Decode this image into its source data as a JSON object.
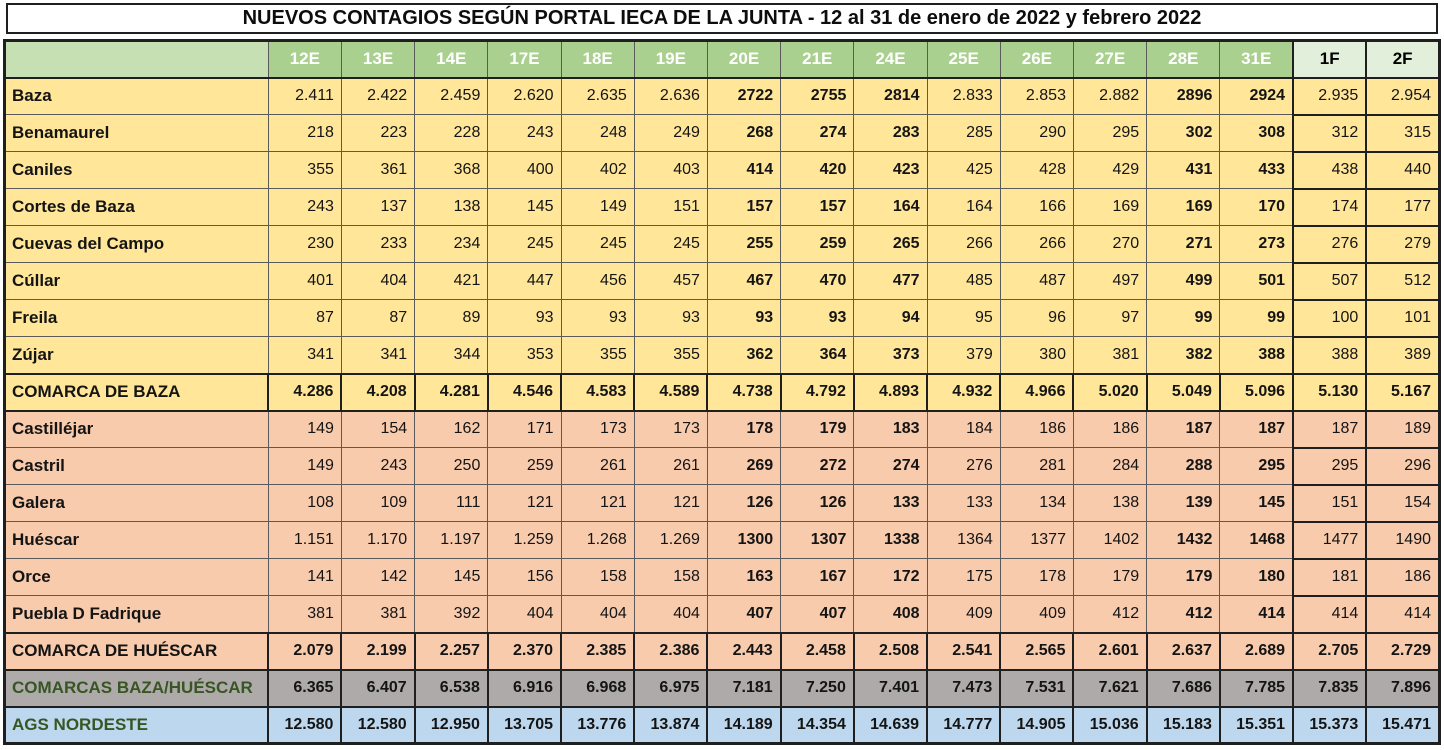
{
  "title": "NUEVOS CONTAGIOS  SEGÚN PORTAL IECA DE LA JUNTA - 12 al 31 de enero de 2022 y febrero 2022",
  "colors": {
    "header_green": "#A9D08E",
    "header_corner_green": "#C6E0B4",
    "header_february": "#E2EFDA",
    "baza_section_yellow": "#FFE699",
    "huescar_section_salmon": "#F8CBAD",
    "comarcas_total_gray": "#AEAAAA",
    "ags_total_blue": "#BDD7EE",
    "total_label_green": "#375623"
  },
  "table": {
    "columns": [
      "12E",
      "13E",
      "14E",
      "17E",
      "18E",
      "19E",
      "20E",
      "21E",
      "24E",
      "25E",
      "26E",
      "27E",
      "28E",
      "31E",
      "1F",
      "2F"
    ],
    "rows": [
      {
        "label": "Baza",
        "section": "yellow",
        "total": false,
        "values": [
          "2.411",
          "2.422",
          "2.459",
          "2.620",
          "2.635",
          "2.636",
          "2722",
          "2755",
          "2814",
          "2.833",
          "2.853",
          "2.882",
          "2896",
          "2924",
          "2.935",
          "2.954"
        ]
      },
      {
        "label": "Benamaurel",
        "section": "yellow",
        "total": false,
        "values": [
          "218",
          "223",
          "228",
          "243",
          "248",
          "249",
          "268",
          "274",
          "283",
          "285",
          "290",
          "295",
          "302",
          "308",
          "312",
          "315"
        ]
      },
      {
        "label": "Caniles",
        "section": "yellow",
        "total": false,
        "values": [
          "355",
          "361",
          "368",
          "400",
          "402",
          "403",
          "414",
          "420",
          "423",
          "425",
          "428",
          "429",
          "431",
          "433",
          "438",
          "440"
        ]
      },
      {
        "label": "Cortes de Baza",
        "section": "yellow",
        "total": false,
        "values": [
          "243",
          "137",
          "138",
          "145",
          "149",
          "151",
          "157",
          "157",
          "164",
          "164",
          "166",
          "169",
          "169",
          "170",
          "174",
          "177"
        ]
      },
      {
        "label": "Cuevas del Campo",
        "section": "yellow",
        "total": false,
        "values": [
          "230",
          "233",
          "234",
          "245",
          "245",
          "245",
          "255",
          "259",
          "265",
          "266",
          "266",
          "270",
          "271",
          "273",
          "276",
          "279"
        ]
      },
      {
        "label": "Cúllar",
        "section": "yellow",
        "total": false,
        "values": [
          "401",
          "404",
          "421",
          "447",
          "456",
          "457",
          "467",
          "470",
          "477",
          "485",
          "487",
          "497",
          "499",
          "501",
          "507",
          "512"
        ]
      },
      {
        "label": "Freila",
        "section": "yellow",
        "total": false,
        "values": [
          "87",
          "87",
          "89",
          "93",
          "93",
          "93",
          "93",
          "93",
          "94",
          "95",
          "96",
          "97",
          "99",
          "99",
          "100",
          "101"
        ]
      },
      {
        "label": "Zújar",
        "section": "yellow",
        "total": false,
        "values": [
          "341",
          "341",
          "344",
          "353",
          "355",
          "355",
          "362",
          "364",
          "373",
          "379",
          "380",
          "381",
          "382",
          "388",
          "388",
          "389"
        ]
      },
      {
        "label": "COMARCA DE BAZA",
        "section": "yellow",
        "total": true,
        "values": [
          "4.286",
          "4.208",
          "4.281",
          "4.546",
          "4.583",
          "4.589",
          "4.738",
          "4.792",
          "4.893",
          "4.932",
          "4.966",
          "5.020",
          "5.049",
          "5.096",
          "5.130",
          "5.167"
        ]
      },
      {
        "label": "Castilléjar",
        "section": "salmon",
        "total": false,
        "values": [
          "149",
          "154",
          "162",
          "171",
          "173",
          "173",
          "178",
          "179",
          "183",
          "184",
          "186",
          "186",
          "187",
          "187",
          "187",
          "189"
        ]
      },
      {
        "label": "Castril",
        "section": "salmon",
        "total": false,
        "values": [
          "149",
          "243",
          "250",
          "259",
          "261",
          "261",
          "269",
          "272",
          "274",
          "276",
          "281",
          "284",
          "288",
          "295",
          "295",
          "296"
        ]
      },
      {
        "label": "Galera",
        "section": "salmon",
        "total": false,
        "values": [
          "108",
          "109",
          "111",
          "121",
          "121",
          "121",
          "126",
          "126",
          "133",
          "133",
          "134",
          "138",
          "139",
          "145",
          "151",
          "154"
        ]
      },
      {
        "label": "Huéscar",
        "section": "salmon",
        "total": false,
        "values": [
          "1.151",
          "1.170",
          "1.197",
          "1.259",
          "1.268",
          "1.269",
          "1300",
          "1307",
          "1338",
          "1364",
          "1377",
          "1402",
          "1432",
          "1468",
          "1477",
          "1490"
        ]
      },
      {
        "label": "Orce",
        "section": "salmon",
        "total": false,
        "values": [
          "141",
          "142",
          "145",
          "156",
          "158",
          "158",
          "163",
          "167",
          "172",
          "175",
          "178",
          "179",
          "179",
          "180",
          "181",
          "186"
        ]
      },
      {
        "label": "Puebla D Fadrique",
        "section": "salmon",
        "total": false,
        "values": [
          "381",
          "381",
          "392",
          "404",
          "404",
          "404",
          "407",
          "407",
          "408",
          "409",
          "409",
          "412",
          "412",
          "414",
          "414",
          "414"
        ]
      },
      {
        "label": "COMARCA DE HUÉSCAR",
        "section": "salmon",
        "total": true,
        "values": [
          "2.079",
          "2.199",
          "2.257",
          "2.370",
          "2.385",
          "2.386",
          "2.443",
          "2.458",
          "2.508",
          "2.541",
          "2.565",
          "2.601",
          "2.637",
          "2.689",
          "2.705",
          "2.729"
        ]
      },
      {
        "label": "COMARCAS BAZA/HUÉSCAR",
        "section": "gray",
        "total": true,
        "green_label": true,
        "values": [
          "6.365",
          "6.407",
          "6.538",
          "6.916",
          "6.968",
          "6.975",
          "7.181",
          "7.250",
          "7.401",
          "7.473",
          "7.531",
          "7.621",
          "7.686",
          "7.785",
          "7.835",
          "7.896"
        ]
      },
      {
        "label": "AGS NORDESTE",
        "section": "blue",
        "total": true,
        "green_label": true,
        "values": [
          "12.580",
          "12.580",
          "12.950",
          "13.705",
          "13.776",
          "13.874",
          "14.189",
          "14.354",
          "14.639",
          "14.777",
          "14.905",
          "15.036",
          "15.183",
          "15.351",
          "15.373",
          "15.471"
        ]
      }
    ]
  }
}
